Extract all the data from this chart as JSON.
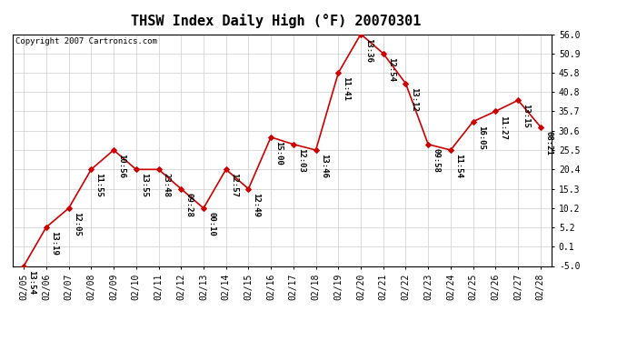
{
  "title": "THSW Index Daily High (°F) 20070301",
  "copyright": "Copyright 2007 Cartronics.com",
  "dates": [
    "02/05",
    "02/06",
    "02/07",
    "02/08",
    "02/09",
    "02/10",
    "02/11",
    "02/12",
    "02/13",
    "02/14",
    "02/15",
    "02/16",
    "02/17",
    "02/18",
    "02/19",
    "02/20",
    "02/21",
    "02/22",
    "02/23",
    "02/24",
    "02/25",
    "02/26",
    "02/27",
    "02/28"
  ],
  "values": [
    -5.0,
    5.2,
    10.2,
    20.4,
    25.5,
    20.4,
    20.4,
    15.3,
    10.2,
    20.4,
    15.3,
    28.9,
    27.0,
    25.5,
    45.8,
    56.0,
    50.9,
    43.0,
    27.0,
    25.5,
    33.0,
    35.7,
    38.6,
    31.6
  ],
  "labels": [
    "13:54",
    "13:19",
    "12:05",
    "11:55",
    "10:56",
    "13:55",
    "23:48",
    "09:28",
    "00:10",
    "12:57",
    "12:49",
    "15:00",
    "12:03",
    "13:46",
    "11:41",
    "13:36",
    "12:54",
    "13:12",
    "09:58",
    "11:54",
    "16:05",
    "11:27",
    "13:15",
    "08:21"
  ],
  "line_color": "#cc0000",
  "marker_color": "#cc0000",
  "bg_color": "#ffffff",
  "grid_color": "#cccccc",
  "ylim": [
    -5.0,
    56.0
  ],
  "yticks": [
    -5.0,
    0.1,
    5.2,
    10.2,
    15.3,
    20.4,
    25.5,
    30.6,
    35.7,
    40.8,
    45.8,
    50.9,
    56.0
  ],
  "ytick_labels": [
    "-5.0",
    "0.1",
    "5.2",
    "10.2",
    "15.3",
    "20.4",
    "25.5",
    "30.6",
    "35.7",
    "40.8",
    "45.8",
    "50.9",
    "56.0"
  ],
  "title_fontsize": 11,
  "label_fontsize": 6.5,
  "tick_fontsize": 7,
  "copyright_fontsize": 6.5
}
